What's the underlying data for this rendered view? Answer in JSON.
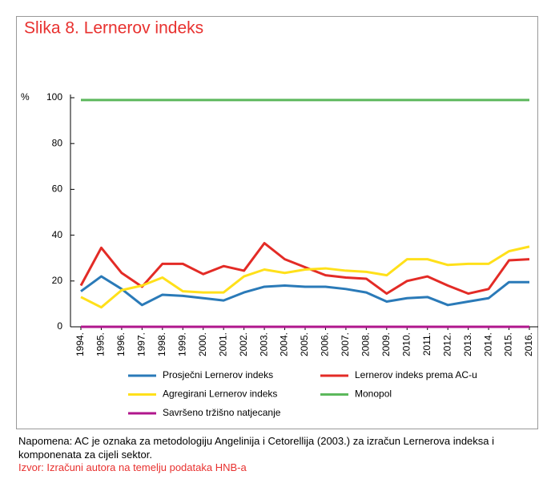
{
  "chart_data": {
    "type": "line",
    "title": "Slika 8. Lernerov indeks",
    "y_unit": "%",
    "categories": [
      "1994.",
      "1995.",
      "1996.",
      "1997.",
      "1998.",
      "1999.",
      "2000.",
      "2001.",
      "2002.",
      "2003.",
      "2004.",
      "2005.",
      "2006.",
      "2007.",
      "2008.",
      "2009.",
      "2010.",
      "2011.",
      "2012.",
      "2013.",
      "2014.",
      "2015.",
      "2016."
    ],
    "series": [
      {
        "name": "Prosječni Lernerov indeks",
        "color": "#2a7ab8",
        "values": [
          15.5,
          22,
          16.5,
          9.5,
          14,
          13.5,
          12.5,
          11.5,
          15,
          17.5,
          18,
          17.5,
          17.5,
          16.5,
          15,
          11,
          12.5,
          13,
          9.5,
          11,
          12.5,
          19.5,
          19.5
        ]
      },
      {
        "name": "Lernerov indeks prema AC-u",
        "color": "#e32b26",
        "values": [
          18,
          34.5,
          23.5,
          17.5,
          27.5,
          27.5,
          23,
          26.5,
          24.5,
          36.5,
          29.5,
          26,
          22.5,
          21.5,
          21,
          14.5,
          20,
          22,
          18,
          14.5,
          16.5,
          29,
          29.5
        ]
      },
      {
        "name": "Agregirani Lernerov indeks",
        "color": "#ffe01a",
        "values": [
          13,
          8.5,
          16,
          18,
          21.5,
          15.5,
          15,
          15,
          22,
          25,
          23.5,
          25,
          25.5,
          24.5,
          24,
          22.5,
          29.5,
          29.5,
          27,
          27.5,
          27.5,
          33,
          35
        ]
      },
      {
        "name": "Monopol",
        "color": "#5cb85c",
        "values": [
          99,
          99,
          99,
          99,
          99,
          99,
          99,
          99,
          99,
          99,
          99,
          99,
          99,
          99,
          99,
          99,
          99,
          99,
          99,
          99,
          99,
          99,
          99
        ]
      },
      {
        "name": "Savršeno tržišno natjecanje",
        "color": "#b0168c",
        "values": [
          0,
          0,
          0,
          0,
          0,
          0,
          0,
          0,
          0,
          0,
          0,
          0,
          0,
          0,
          0,
          0,
          0,
          0,
          0,
          0,
          0,
          0,
          0
        ]
      }
    ],
    "ylim": [
      0,
      100
    ],
    "yticks": [
      0,
      20,
      40,
      60,
      80,
      100
    ],
    "grid": false,
    "note": "Napomena: AC je oznaka za metodologiju Angelinija i Cetorellija (2003.) za izračun Lernerova indeksa i komponenata za cijeli sektor.",
    "source": "Izvor: Izračuni autora na temelju podataka HNB-a"
  }
}
